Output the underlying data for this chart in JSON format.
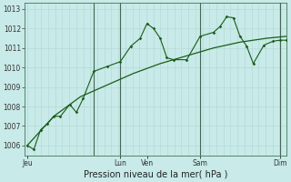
{
  "xlabel": "Pression niveau de la mer( hPa )",
  "bg_color": "#c8eae8",
  "grid_minor_color": "#b0d8d4",
  "grid_major_color": "#99c4c0",
  "day_vline_color": "#446655",
  "line_color": "#1a5c1a",
  "ylim": [
    1005.5,
    1013.3
  ],
  "yticks": [
    1006,
    1007,
    1008,
    1009,
    1010,
    1011,
    1012,
    1013
  ],
  "xlim": [
    -0.2,
    19.5
  ],
  "total_x_units": 19.5,
  "series1_x": [
    0.0,
    0.5,
    1.0,
    1.5,
    2.0,
    2.5,
    3.2,
    3.7,
    4.2,
    5.0,
    6.0,
    7.0,
    7.8,
    8.5,
    9.0,
    9.5,
    10.0,
    10.5,
    11.0,
    12.0,
    13.0,
    14.0,
    14.5,
    15.0,
    15.5,
    16.0,
    16.5,
    17.0,
    17.8,
    18.5,
    19.0,
    19.5
  ],
  "series1_y": [
    1006.0,
    1005.8,
    1006.8,
    1007.1,
    1007.5,
    1007.5,
    1008.1,
    1007.7,
    1008.4,
    1009.8,
    1010.05,
    1010.3,
    1011.1,
    1011.5,
    1012.25,
    1012.0,
    1011.5,
    1010.5,
    1010.4,
    1010.4,
    1011.6,
    1011.8,
    1012.1,
    1012.6,
    1012.55,
    1011.6,
    1011.1,
    1010.2,
    1011.15,
    1011.35,
    1011.4,
    1011.4
  ],
  "series2_x": [
    0.0,
    2.0,
    4.0,
    6.0,
    8.0,
    10.0,
    12.0,
    14.0,
    16.0,
    18.0,
    19.5
  ],
  "series2_y": [
    1006.0,
    1007.5,
    1008.5,
    1009.1,
    1009.7,
    1010.2,
    1010.6,
    1011.0,
    1011.3,
    1011.5,
    1011.6
  ],
  "day_vlines_x": [
    5.0,
    7.0,
    13.0,
    19.0
  ],
  "xtick_positions": [
    0.0,
    7.0,
    9.0,
    13.0,
    19.0
  ],
  "xtick_labels": [
    "Jeu",
    "Lun",
    "Ven",
    "Sam",
    "Dim"
  ],
  "xlabel_fontsize": 7.0,
  "ytick_fontsize": 5.5,
  "xtick_fontsize": 5.5
}
